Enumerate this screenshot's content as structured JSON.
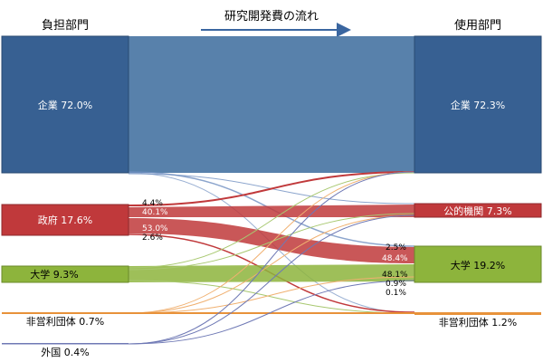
{
  "header": {
    "left": "負担部門",
    "center": "研究開発費の流れ",
    "right": "使用部門"
  },
  "colors": {
    "company": "#376092",
    "company_flow": "#4f7aa6",
    "government": "#c0393b",
    "university": "#8db43c",
    "nonprofit": "#e8923a",
    "foreign": "#6f79b5",
    "public_institution": "#c0393b",
    "arrow": "#3a66a0",
    "border": "#666666"
  },
  "sources": [
    {
      "id": "company",
      "label": "企業 72.0%"
    },
    {
      "id": "government",
      "label": "政府 17.6%"
    },
    {
      "id": "university",
      "label": "大学 9.3%"
    },
    {
      "id": "nonprofit",
      "label": "非営利団体 0.7%"
    },
    {
      "id": "foreign",
      "label": "外国 0.4%"
    }
  ],
  "targets": [
    {
      "id": "company",
      "label": "企業 72.3%"
    },
    {
      "id": "public_institution",
      "label": "公的機関 7.3%"
    },
    {
      "id": "university",
      "label": "大学 19.2%"
    },
    {
      "id": "nonprofit",
      "label": "非営利団体 1.2%"
    }
  ],
  "flow_labels": {
    "gov_to_company": "4.4%",
    "gov_to_public": "40.1%",
    "gov_to_university": "53.0%",
    "gov_to_nonprofit": "2.6%",
    "univ_from_company": "2.5%",
    "univ_from_government": "48.4%",
    "univ_from_university": "48.1%",
    "univ_from_nonprofit": "0.9%",
    "univ_from_foreign": "0.1%"
  }
}
